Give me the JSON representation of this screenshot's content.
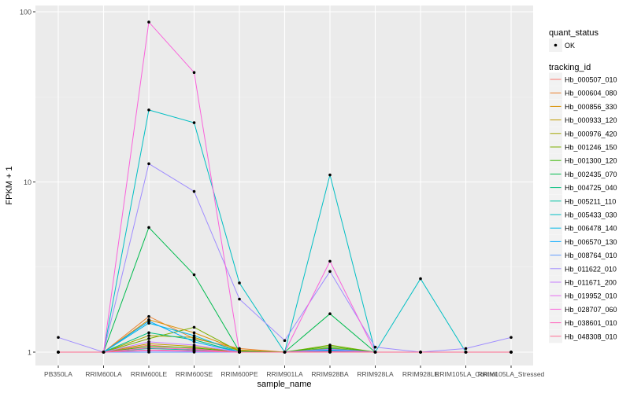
{
  "chart_data": {
    "type": "line",
    "xlabel": "sample_name",
    "ylabel": "FPKM + 1",
    "y_scale": "log10",
    "ylim": [
      1,
      100
    ],
    "y_ticks": [
      1,
      10,
      100
    ],
    "y_tick_labels": [
      "1",
      "10",
      "100"
    ],
    "categories": [
      "PB350LA",
      "RRIM600LA",
      "RRIM600LE",
      "RRIM600SE",
      "RRIM600PE",
      "RRIM901LA",
      "RRIM928BA",
      "RRIM928LA",
      "RRIM928LE",
      "RRIM105LA_Control",
      "RRIM105LA_Stressed"
    ],
    "grid": true,
    "legend": {
      "placement": "right",
      "shape_title": "quant_status",
      "shape_items": [
        "OK"
      ],
      "color_title": "tracking_id"
    },
    "series": [
      {
        "name": "Hb_000507_010",
        "color": "#F8766D",
        "values": [
          1,
          1,
          1.1,
          1.05,
          1,
          1,
          1.02,
          1,
          1,
          1,
          1
        ]
      },
      {
        "name": "Hb_000604_080",
        "color": "#EA8331",
        "values": [
          1,
          1,
          1.62,
          1.2,
          1.05,
          1,
          1.05,
          1,
          1,
          1,
          1
        ]
      },
      {
        "name": "Hb_000856_330",
        "color": "#D89000",
        "values": [
          1,
          1,
          1.55,
          1.3,
          1.03,
          1,
          1.03,
          1,
          1,
          1,
          1
        ]
      },
      {
        "name": "Hb_000933_120",
        "color": "#C09B00",
        "values": [
          1,
          1,
          1.12,
          1.08,
          1,
          1,
          1.02,
          1,
          1,
          1,
          1
        ]
      },
      {
        "name": "Hb_000976_420",
        "color": "#A3A500",
        "values": [
          1,
          1,
          1.25,
          1.22,
          1.02,
          1,
          1.06,
          1,
          1,
          1,
          1
        ]
      },
      {
        "name": "Hb_001246_150",
        "color": "#7CAE00",
        "values": [
          1,
          1,
          1.2,
          1.4,
          1.01,
          1,
          1.1,
          1,
          1,
          1,
          1
        ]
      },
      {
        "name": "Hb_001300_120",
        "color": "#39B600",
        "values": [
          1,
          1,
          1.08,
          1.06,
          1,
          1,
          1.08,
          1,
          1,
          1,
          1
        ]
      },
      {
        "name": "Hb_002435_070",
        "color": "#00BB4E",
        "values": [
          1,
          1,
          5.4,
          2.85,
          1.01,
          1,
          1.68,
          1,
          1,
          1,
          1
        ]
      },
      {
        "name": "Hb_004725_040",
        "color": "#00BF7D",
        "values": [
          1,
          1,
          1.3,
          1.18,
          1,
          1,
          1.05,
          1,
          1,
          1,
          1
        ]
      },
      {
        "name": "Hb_005211_110",
        "color": "#00C1A3",
        "values": [
          1,
          1,
          1.05,
          1.03,
          1,
          1,
          1.01,
          1,
          1,
          1,
          1
        ]
      },
      {
        "name": "Hb_005433_030",
        "color": "#00BFC4",
        "values": [
          1,
          1,
          26.5,
          22.3,
          2.55,
          1,
          11.0,
          1,
          2.7,
          1,
          1
        ]
      },
      {
        "name": "Hb_006478_140",
        "color": "#00B8E7",
        "values": [
          1,
          1,
          1.48,
          1.25,
          1,
          1,
          1.02,
          1,
          1,
          1,
          1
        ]
      },
      {
        "name": "Hb_006570_130",
        "color": "#00A9FF",
        "values": [
          1,
          1,
          1.52,
          1.15,
          1,
          1,
          1.03,
          1,
          1,
          1,
          1
        ]
      },
      {
        "name": "Hb_008764_010",
        "color": "#619CFF",
        "values": [
          1,
          1,
          1.0,
          1.0,
          1,
          1,
          1.0,
          1,
          1,
          1,
          1
        ]
      },
      {
        "name": "Hb_011622_010",
        "color": "#9F8CFF",
        "values": [
          1.22,
          1,
          12.8,
          8.8,
          2.05,
          1.17,
          2.98,
          1.07,
          1,
          1.05,
          1.22
        ]
      },
      {
        "name": "Hb_011671_200",
        "color": "#C77CFF",
        "values": [
          1,
          1,
          1.15,
          1.1,
          1,
          1,
          1.04,
          1,
          1,
          1,
          1
        ]
      },
      {
        "name": "Hb_019952_010",
        "color": "#E76BF3",
        "values": [
          1,
          1,
          1.02,
          1.01,
          1,
          1,
          1.0,
          1,
          1,
          1,
          1
        ]
      },
      {
        "name": "Hb_028707_060",
        "color": "#FA62DB",
        "values": [
          1,
          1,
          87.0,
          44.0,
          1,
          1,
          3.42,
          1,
          1,
          1,
          1
        ]
      },
      {
        "name": "Hb_038601_010",
        "color": "#FF62BC",
        "values": [
          1,
          1,
          1.06,
          1.04,
          1,
          1,
          1.01,
          1,
          1,
          1,
          1
        ]
      },
      {
        "name": "Hb_048308_010",
        "color": "#FF6C91",
        "values": [
          1,
          1,
          1.03,
          1.02,
          1,
          1,
          1.0,
          1,
          1,
          1,
          1
        ]
      }
    ]
  }
}
